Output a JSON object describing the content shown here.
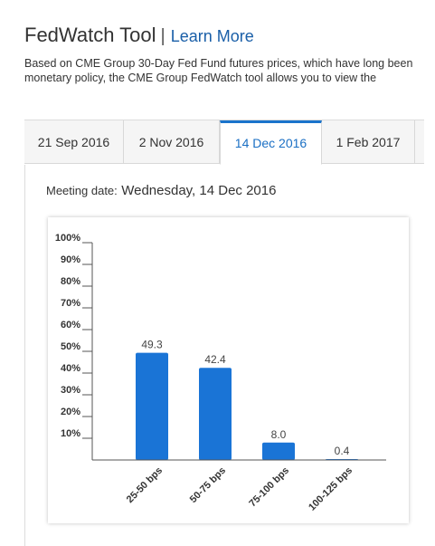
{
  "header": {
    "title": "FedWatch Tool",
    "separator": "|",
    "learn_more": "Learn More"
  },
  "description": {
    "line1": "Based on CME Group 30-Day Fed Fund futures prices, which have long been",
    "line2": "monetary policy, the CME Group FedWatch tool allows you to view the"
  },
  "tabs": [
    {
      "label": "21 Sep 2016",
      "active": false
    },
    {
      "label": "2 Nov 2016",
      "active": false
    },
    {
      "label": "14 Dec 2016",
      "active": true
    },
    {
      "label": "1 Feb 2017",
      "active": false
    }
  ],
  "meeting": {
    "label": "Meeting date:",
    "value": "Wednesday, 14 Dec 2016"
  },
  "colors": {
    "bar": "#1a74d6",
    "accent": "#1a74cc",
    "link": "#1a5fa8"
  },
  "chart_data": {
    "type": "bar",
    "categories": [
      "25-50 bps",
      "50-75 bps",
      "75-100 bps",
      "100-125 bps"
    ],
    "values": [
      49.3,
      42.4,
      8.0,
      0.4
    ],
    "value_labels": [
      "49.3",
      "42.4",
      "8.0",
      "0.4"
    ],
    "ylim": [
      0,
      100
    ],
    "yticks": [
      "10%",
      "20%",
      "30%",
      "40%",
      "50%",
      "60%",
      "70%",
      "80%",
      "90%",
      "100%"
    ],
    "grid": false,
    "title": "",
    "xlabel": "",
    "ylabel": ""
  }
}
